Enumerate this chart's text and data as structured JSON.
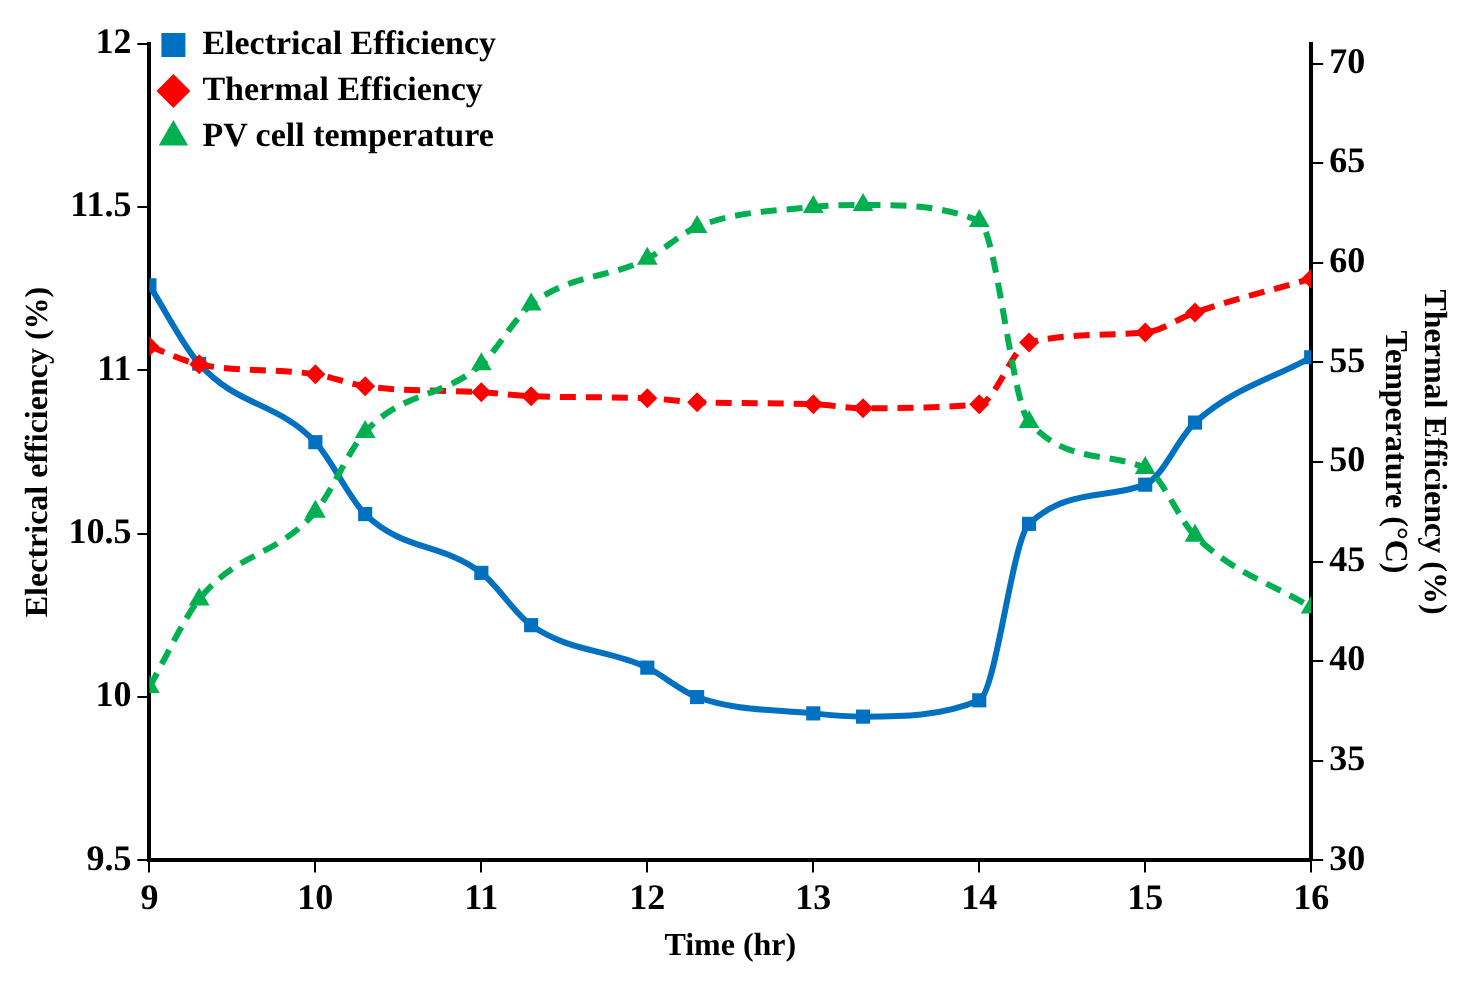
{
  "chart_data": {
    "type": "line",
    "xlabel": "Time (hr)",
    "ylabel": "Electrical efficiency (%)",
    "y2label": "Thermal Efficiency (%)\nTemperature (°C)",
    "x": [
      9,
      9.3,
      10,
      10.3,
      11,
      11.3,
      12,
      12.3,
      13,
      13.3,
      14,
      14.3,
      15,
      15.3,
      16
    ],
    "xlim": [
      9,
      16
    ],
    "xticks": [
      9,
      10,
      11,
      12,
      13,
      14,
      15,
      16
    ],
    "ylim": [
      9.5,
      12
    ],
    "yticks": [
      9.5,
      10,
      10.5,
      11,
      11.5,
      12
    ],
    "y2lim": [
      30,
      71
    ],
    "y2ticks": [
      30,
      35,
      40,
      45,
      50,
      55,
      60,
      65,
      70
    ],
    "grid": false,
    "legend": "top left",
    "series": [
      {
        "name": "Electrical Efficiency",
        "color": "#0070c0",
        "marker": "square",
        "line_style": "solid",
        "values": [
          11.26,
          11.02,
          10.78,
          10.56,
          10.38,
          10.22,
          10.09,
          10.0,
          9.95,
          9.94,
          9.99,
          10.53,
          10.65,
          10.84,
          11.04
        ]
      },
      {
        "name": "Thermal Efficiency",
        "color": "#ff0000",
        "marker": "diamond",
        "line_style": "dashed",
        "axis": "y2",
        "values": [
          55.8,
          54.9,
          54.4,
          53.8,
          53.5,
          53.3,
          53.2,
          53.0,
          52.9,
          52.7,
          52.9,
          56.0,
          56.5,
          57.5,
          59.2
        ]
      },
      {
        "name": "PV cell temperature",
        "color": "#00b050",
        "marker": "triangle",
        "line_style": "dashed",
        "axis": "y2",
        "values": [
          38.7,
          43.1,
          47.5,
          51.5,
          54.9,
          57.9,
          60.2,
          61.8,
          62.8,
          62.9,
          62.1,
          52.0,
          49.7,
          46.3,
          42.7
        ]
      }
    ]
  }
}
